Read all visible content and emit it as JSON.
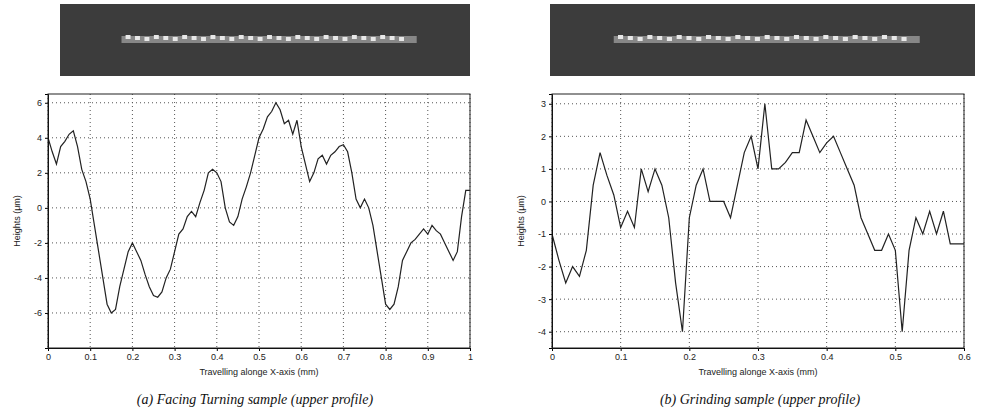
{
  "chart_data": [
    {
      "type": "line",
      "title": "(a) Facing Turning sample (upper profile)",
      "x_label": "Travelling alonge X-axis (mm)",
      "y_label": "Heights (μm)",
      "xlim": [
        0,
        1
      ],
      "xticks": [
        0,
        0.1,
        0.2,
        0.3,
        0.4,
        0.5,
        0.6,
        0.7,
        0.8,
        0.9,
        1
      ],
      "ylim": [
        -8,
        6.5
      ],
      "yticks": [
        -6,
        -4,
        -2,
        0,
        2,
        4,
        6
      ],
      "grid": true,
      "color": "#222222",
      "x": [
        0,
        0.01,
        0.02,
        0.03,
        0.04,
        0.05,
        0.06,
        0.07,
        0.08,
        0.09,
        0.1,
        0.11,
        0.12,
        0.13,
        0.14,
        0.15,
        0.16,
        0.17,
        0.18,
        0.19,
        0.2,
        0.21,
        0.22,
        0.23,
        0.24,
        0.25,
        0.26,
        0.27,
        0.28,
        0.29,
        0.3,
        0.31,
        0.32,
        0.33,
        0.34,
        0.35,
        0.36,
        0.37,
        0.38,
        0.39,
        0.4,
        0.41,
        0.42,
        0.43,
        0.44,
        0.45,
        0.46,
        0.47,
        0.48,
        0.49,
        0.5,
        0.51,
        0.52,
        0.53,
        0.54,
        0.55,
        0.56,
        0.57,
        0.58,
        0.59,
        0.6,
        0.61,
        0.62,
        0.63,
        0.64,
        0.65,
        0.66,
        0.67,
        0.68,
        0.69,
        0.7,
        0.71,
        0.72,
        0.73,
        0.74,
        0.75,
        0.76,
        0.77,
        0.78,
        0.79,
        0.8,
        0.81,
        0.82,
        0.83,
        0.84,
        0.85,
        0.86,
        0.87,
        0.88,
        0.89,
        0.9,
        0.91,
        0.92,
        0.93,
        0.94,
        0.95,
        0.96,
        0.97,
        0.98,
        0.99,
        1
      ],
      "values": [
        4,
        3.2,
        2.5,
        3.5,
        3.8,
        4.2,
        4.4,
        3.5,
        2.2,
        1.5,
        0.5,
        -1,
        -2.5,
        -4,
        -5.5,
        -6,
        -5.8,
        -4.5,
        -3.5,
        -2.5,
        -2,
        -2.5,
        -3,
        -3.8,
        -4.5,
        -5,
        -5.1,
        -4.8,
        -4,
        -3.5,
        -2.5,
        -1.5,
        -1.2,
        -0.5,
        -0.2,
        -0.5,
        0.3,
        1,
        2,
        2.2,
        2,
        1.5,
        0,
        -0.8,
        -1,
        -0.5,
        0.5,
        1.2,
        2,
        3,
        4,
        4.5,
        5.2,
        5.5,
        6,
        5.6,
        4.8,
        5,
        4.2,
        5,
        3.5,
        2.5,
        1.5,
        2,
        2.8,
        3,
        2.5,
        3,
        3.2,
        3.5,
        3.6,
        3.2,
        2,
        0.5,
        0,
        0.5,
        0,
        -1,
        -2.5,
        -4,
        -5.5,
        -5.8,
        -5.5,
        -4.5,
        -3,
        -2.5,
        -2,
        -1.8,
        -1.5,
        -1.2,
        -1.5,
        -1,
        -1.3,
        -1.5,
        -2,
        -2.5,
        -3,
        -2.5,
        -0.5,
        1,
        1
      ]
    },
    {
      "type": "line",
      "title": "(b) Grinding sample (upper profile)",
      "x_label": "Travelling alonge X-axis (mm)",
      "y_label": "Heights (μm)",
      "xlim": [
        0,
        0.6
      ],
      "xticks": [
        0,
        0.1,
        0.2,
        0.3,
        0.4,
        0.5,
        0.6
      ],
      "ylim": [
        -4.5,
        3.3
      ],
      "yticks": [
        -4,
        -3,
        -2,
        -1,
        0,
        1,
        2,
        3
      ],
      "grid": true,
      "color": "#222222",
      "x": [
        0,
        0.01,
        0.02,
        0.03,
        0.04,
        0.05,
        0.06,
        0.07,
        0.08,
        0.09,
        0.1,
        0.11,
        0.12,
        0.13,
        0.14,
        0.15,
        0.16,
        0.17,
        0.18,
        0.19,
        0.2,
        0.21,
        0.22,
        0.23,
        0.24,
        0.25,
        0.26,
        0.27,
        0.28,
        0.29,
        0.3,
        0.31,
        0.32,
        0.33,
        0.34,
        0.35,
        0.36,
        0.37,
        0.38,
        0.39,
        0.4,
        0.41,
        0.42,
        0.43,
        0.44,
        0.45,
        0.46,
        0.47,
        0.48,
        0.49,
        0.5,
        0.51,
        0.52,
        0.53,
        0.54,
        0.55,
        0.56,
        0.57,
        0.58,
        0.59,
        0.6
      ],
      "values": [
        -1,
        -1.8,
        -2.5,
        -2,
        -2.3,
        -1.5,
        0.5,
        1.5,
        0.8,
        0.2,
        -0.8,
        -0.3,
        -0.8,
        1,
        0.3,
        1,
        0.5,
        -0.5,
        -2.5,
        -4,
        -0.5,
        0.5,
        1,
        0,
        0,
        0,
        -0.5,
        0.5,
        1.5,
        2,
        1,
        3,
        1,
        1,
        1.2,
        1.5,
        1.5,
        2.5,
        2,
        1.5,
        1.8,
        2,
        1.5,
        1,
        0.5,
        -0.5,
        -1,
        -1.5,
        -1.5,
        -1,
        -1.5,
        -4,
        -1.5,
        -0.5,
        -1,
        -0.3,
        -1,
        -0.3,
        -1.3,
        -1.3,
        -1.3
      ]
    }
  ]
}
